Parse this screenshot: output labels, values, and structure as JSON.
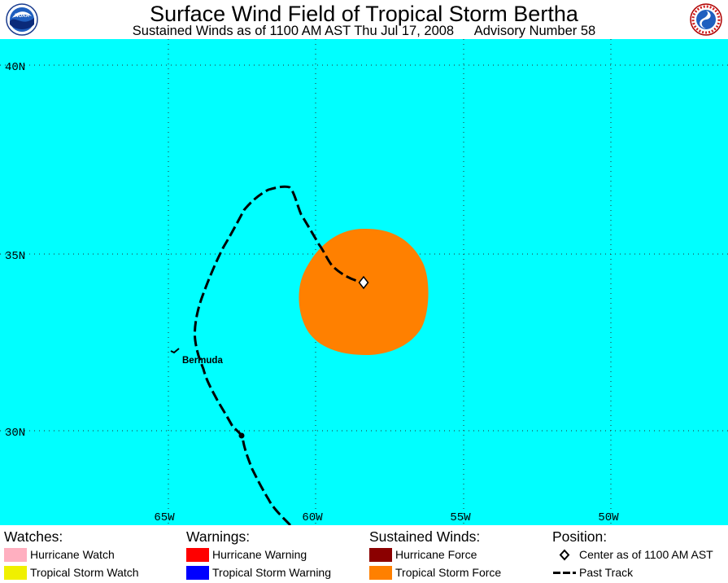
{
  "header": {
    "title": "Surface Wind Field of Tropical Storm Bertha",
    "subtitle_left": "Sustained Winds as of 1100 AM AST Thu Jul 17, 2008",
    "subtitle_right": "Advisory Number 58",
    "logo_left": "noaa-logo",
    "logo_right": "nws-logo"
  },
  "map": {
    "ocean_color": "#00ffff",
    "lon_labels": [
      "65W",
      "60W",
      "55W",
      "50W"
    ],
    "lat_labels": [
      "40N",
      "35N",
      "30N"
    ],
    "place_label": "Bermuda",
    "storm_center": {
      "lon": -58.3,
      "lat": 34.2
    },
    "tropical_storm_wind_color": "#ff8000"
  },
  "legend": {
    "watches": {
      "heading": "Watches:",
      "items": [
        {
          "label": "Hurricane Watch",
          "color": "#ffafc0"
        },
        {
          "label": "Tropical Storm Watch",
          "color": "#f0f000"
        }
      ]
    },
    "warnings": {
      "heading": "Warnings:",
      "items": [
        {
          "label": "Hurricane Warning",
          "color": "#ff0000"
        },
        {
          "label": "Tropical Storm Warning",
          "color": "#0000ff"
        }
      ]
    },
    "winds": {
      "heading": "Sustained Winds:",
      "items": [
        {
          "label": "Hurricane Force",
          "color": "#8b0000"
        },
        {
          "label": "Tropical Storm Force",
          "color": "#ff8000"
        }
      ]
    },
    "position": {
      "heading": "Position:",
      "items": [
        {
          "label": "Center as of 1100 AM AST",
          "icon": "diamond-icon"
        },
        {
          "label": "Past Track",
          "icon": "dashed-line-icon"
        }
      ]
    }
  }
}
